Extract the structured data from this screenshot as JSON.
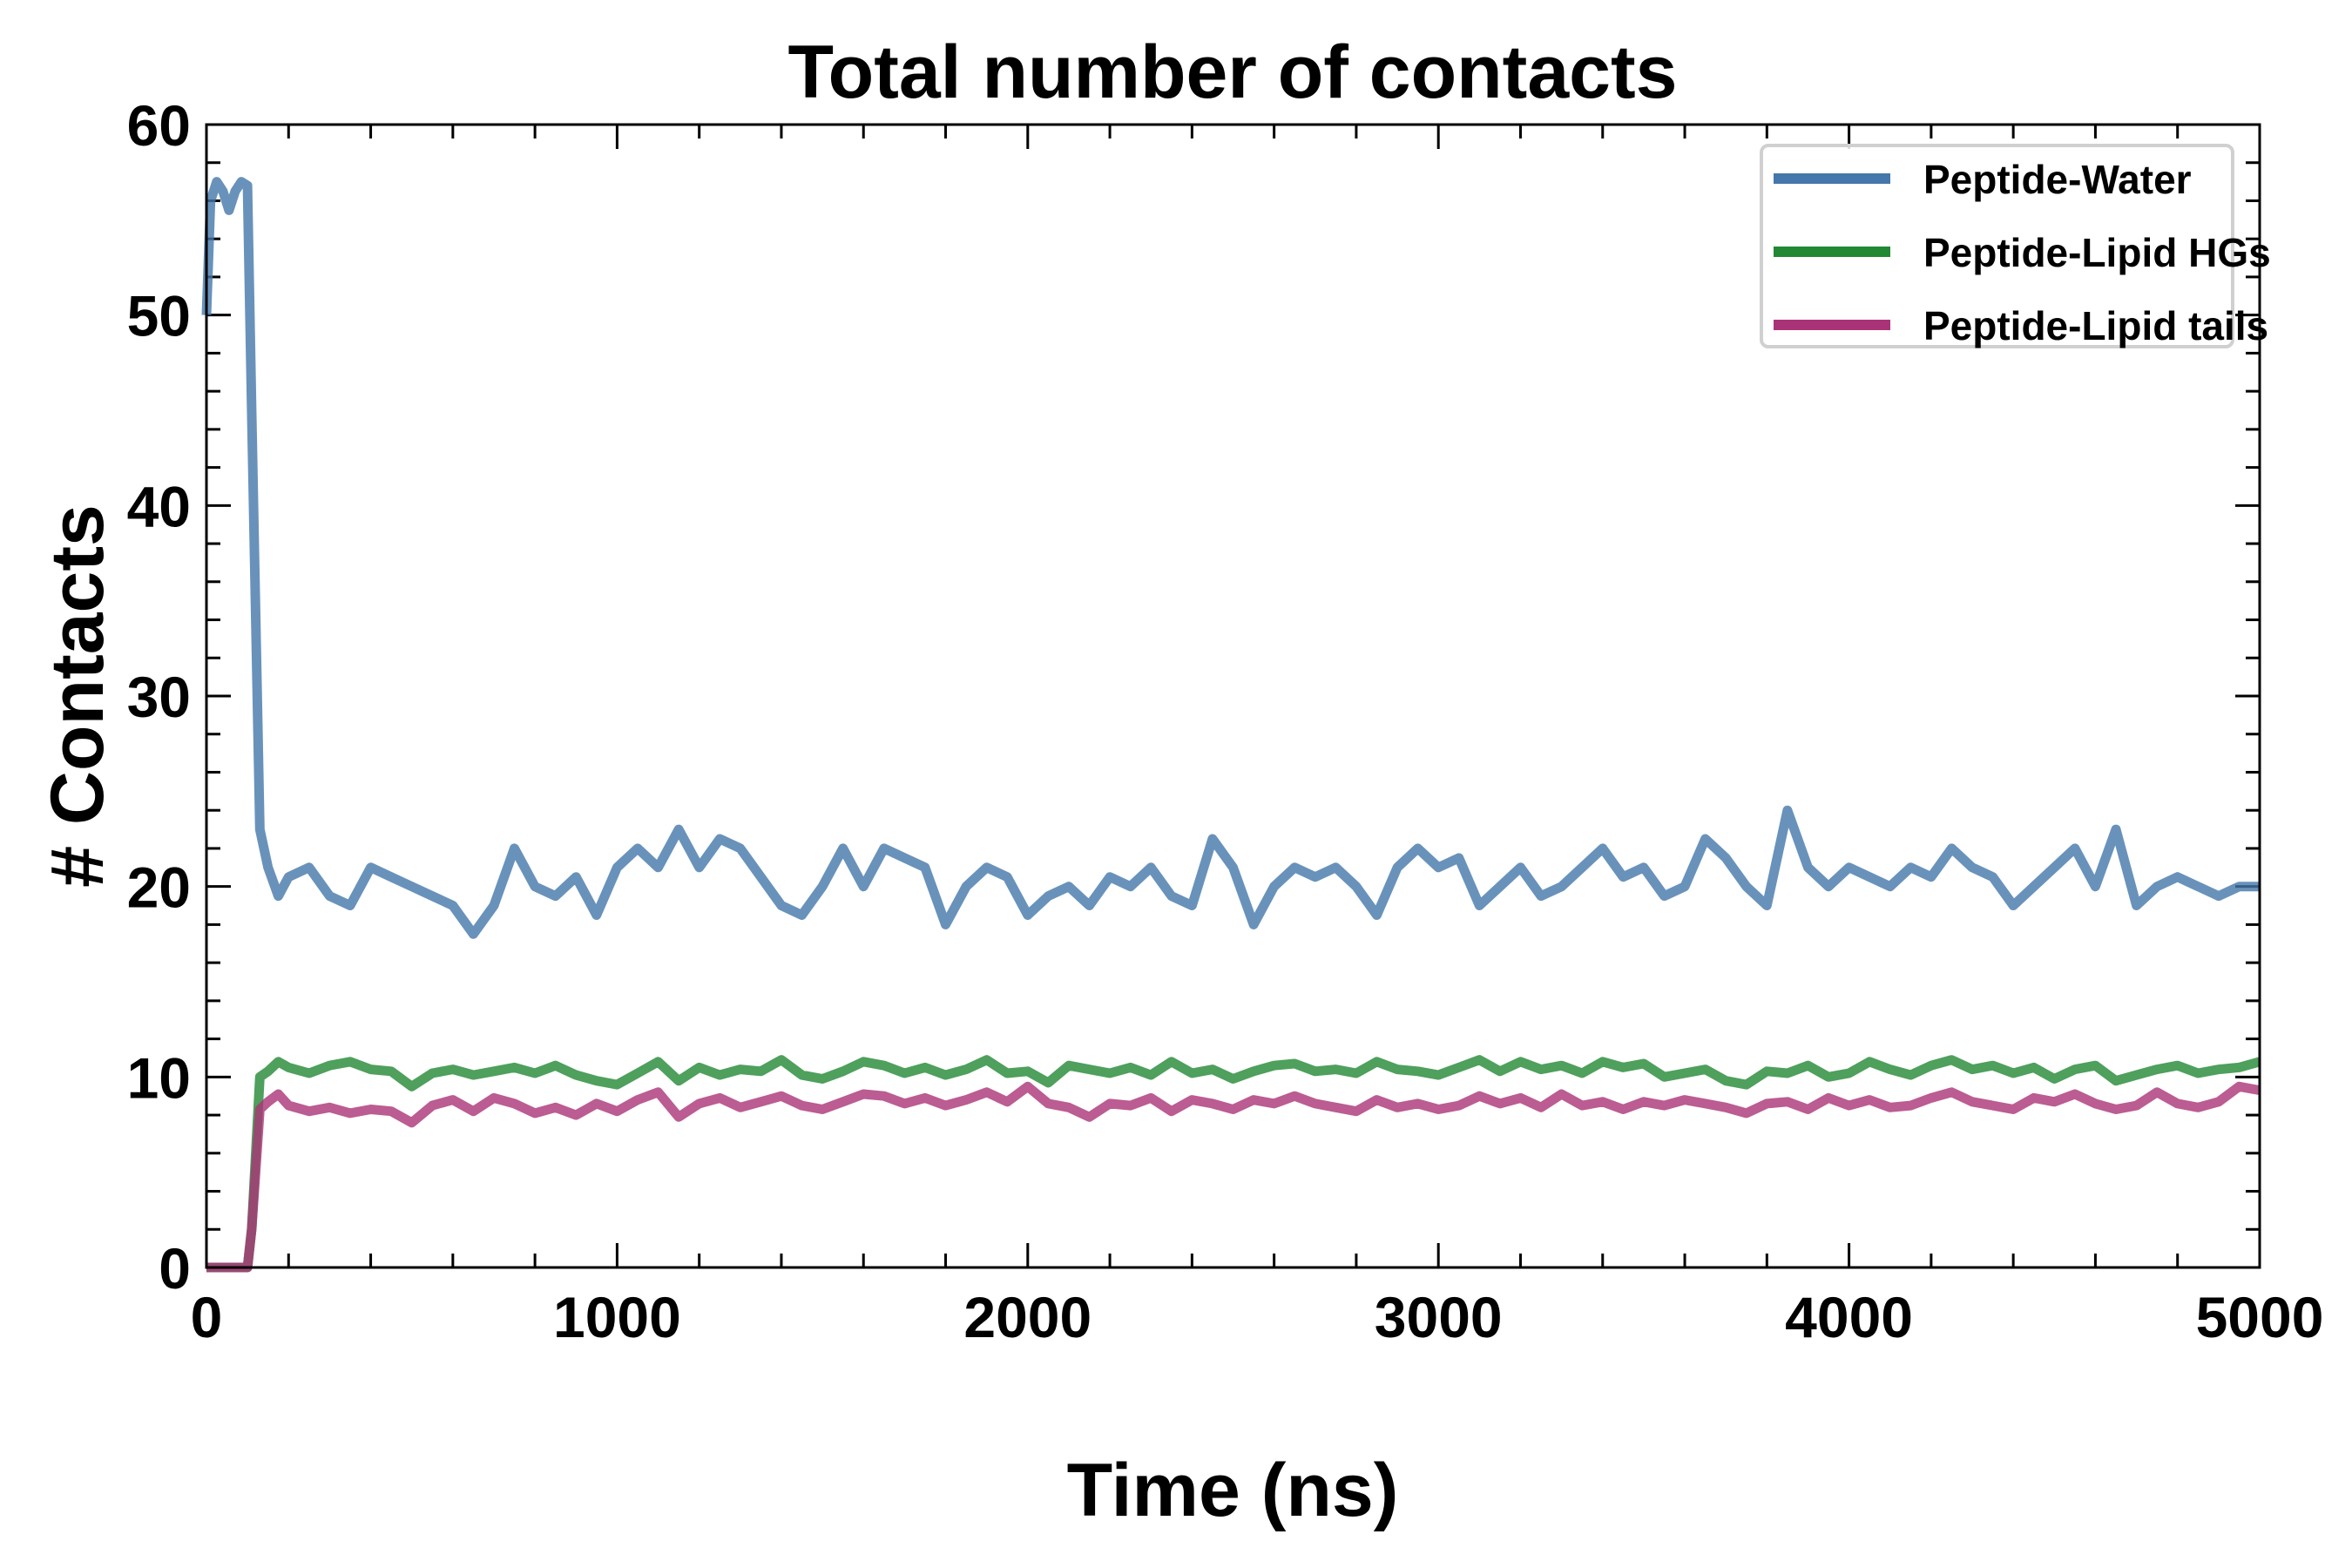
{
  "chart_data": {
    "type": "line",
    "title": "Total number of contacts",
    "xlabel": "Time (ns)",
    "ylabel": "# Contacts",
    "xlim": [
      0,
      5000
    ],
    "ylim": [
      0,
      60
    ],
    "xticks": [
      0,
      1000,
      2000,
      3000,
      4000,
      5000
    ],
    "yticks": [
      0,
      10,
      20,
      30,
      40,
      50,
      60
    ],
    "xticklabels": [
      "0",
      "1000",
      "2000",
      "3000",
      "4000",
      "5000"
    ],
    "yticklabels": [
      "0",
      "10",
      "20",
      "30",
      "40",
      "50",
      "60"
    ],
    "grid": false,
    "legend_position": "top-right",
    "series": [
      {
        "name": "Peptide-Water",
        "color": "#4477aa",
        "x": [
          0,
          10,
          25,
          40,
          55,
          70,
          85,
          100,
          110,
          130,
          150,
          175,
          200,
          250,
          300,
          350,
          400,
          450,
          500,
          550,
          600,
          650,
          700,
          750,
          800,
          850,
          900,
          950,
          1000,
          1050,
          1100,
          1150,
          1200,
          1250,
          1300,
          1350,
          1400,
          1450,
          1500,
          1550,
          1600,
          1650,
          1700,
          1750,
          1800,
          1850,
          1900,
          1950,
          2000,
          2050,
          2100,
          2150,
          2200,
          2250,
          2300,
          2350,
          2400,
          2450,
          2500,
          2550,
          2600,
          2650,
          2700,
          2750,
          2800,
          2850,
          2900,
          2950,
          3000,
          3050,
          3100,
          3150,
          3200,
          3250,
          3300,
          3350,
          3400,
          3450,
          3500,
          3550,
          3600,
          3650,
          3700,
          3750,
          3800,
          3850,
          3900,
          3950,
          4000,
          4050,
          4100,
          4150,
          4200,
          4250,
          4300,
          4350,
          4400,
          4450,
          4500,
          4550,
          4600,
          4650,
          4700,
          4750,
          4800,
          4850,
          4900,
          4950,
          5000
        ],
        "y": [
          50,
          56,
          57,
          56.5,
          55.5,
          56.5,
          57,
          56.8,
          45,
          23,
          21,
          19.5,
          20.5,
          21,
          19.5,
          19,
          21,
          20.5,
          20,
          19.5,
          19,
          17.5,
          19,
          22,
          20,
          19.5,
          20.5,
          18.5,
          21,
          22,
          21,
          23,
          21,
          22.5,
          22,
          20.5,
          19,
          18.5,
          20,
          22,
          20,
          22,
          21.5,
          21,
          18,
          20,
          21,
          20.5,
          18.5,
          19.5,
          20,
          19,
          20.5,
          20,
          21,
          19.5,
          19,
          22.5,
          21,
          18,
          20,
          21,
          20.5,
          21,
          20,
          18.5,
          21,
          22,
          21,
          21.5,
          19,
          20,
          21,
          19.5,
          20,
          21,
          22,
          20.5,
          21,
          19.5,
          20,
          22.5,
          21.5,
          20,
          19,
          24,
          21,
          20,
          21,
          20.5,
          20,
          21,
          20.5,
          22,
          21,
          20.5,
          19,
          20,
          21,
          22,
          20,
          23,
          19,
          20,
          20.5,
          20,
          19.5,
          20,
          20
        ]
      },
      {
        "name": "Peptide-Lipid HGs",
        "color": "#228833",
        "x": [
          0,
          50,
          100,
          110,
          130,
          150,
          175,
          200,
          250,
          300,
          350,
          400,
          450,
          500,
          550,
          600,
          650,
          700,
          750,
          800,
          850,
          900,
          950,
          1000,
          1050,
          1100,
          1150,
          1200,
          1250,
          1300,
          1350,
          1400,
          1450,
          1500,
          1550,
          1600,
          1650,
          1700,
          1750,
          1800,
          1850,
          1900,
          1950,
          2000,
          2050,
          2100,
          2150,
          2200,
          2250,
          2300,
          2350,
          2400,
          2450,
          2500,
          2550,
          2600,
          2650,
          2700,
          2750,
          2800,
          2850,
          2900,
          2950,
          3000,
          3050,
          3100,
          3150,
          3200,
          3250,
          3300,
          3350,
          3400,
          3450,
          3500,
          3550,
          3600,
          3650,
          3700,
          3750,
          3800,
          3850,
          3900,
          3950,
          4000,
          4050,
          4100,
          4150,
          4200,
          4250,
          4300,
          4350,
          4400,
          4450,
          4500,
          4550,
          4600,
          4650,
          4700,
          4750,
          4800,
          4850,
          4900,
          4950,
          5000
        ],
        "y": [
          0,
          0,
          0,
          2,
          10,
          10.3,
          10.8,
          10.5,
          10.2,
          10.6,
          10.8,
          10.4,
          10.3,
          9.5,
          10.2,
          10.4,
          10.1,
          10.3,
          10.5,
          10.2,
          10.6,
          10.1,
          9.8,
          9.6,
          10.2,
          10.8,
          9.8,
          10.5,
          10.1,
          10.4,
          10.3,
          10.9,
          10.1,
          9.9,
          10.3,
          10.8,
          10.6,
          10.2,
          10.5,
          10.1,
          10.4,
          10.9,
          10.2,
          10.3,
          9.7,
          10.6,
          10.4,
          10.2,
          10.5,
          10.1,
          10.8,
          10.2,
          10.4,
          9.9,
          10.3,
          10.6,
          10.7,
          10.3,
          10.4,
          10.2,
          10.8,
          10.4,
          10.3,
          10.1,
          10.5,
          10.9,
          10.3,
          10.8,
          10.4,
          10.6,
          10.2,
          10.8,
          10.5,
          10.7,
          10,
          10.2,
          10.4,
          9.8,
          9.6,
          10.3,
          10.2,
          10.6,
          10,
          10.2,
          10.8,
          10.4,
          10.1,
          10.6,
          10.9,
          10.4,
          10.6,
          10.2,
          10.5,
          9.9,
          10.4,
          10.6,
          9.8,
          10.1,
          10.4,
          10.6,
          10.2,
          10.4,
          10.5,
          10.8
        ]
      },
      {
        "name": "Peptide-Lipid tails",
        "color": "#aa3377",
        "x": [
          0,
          50,
          100,
          110,
          130,
          150,
          175,
          200,
          250,
          300,
          350,
          400,
          450,
          500,
          550,
          600,
          650,
          700,
          750,
          800,
          850,
          900,
          950,
          1000,
          1050,
          1100,
          1150,
          1200,
          1250,
          1300,
          1350,
          1400,
          1450,
          1500,
          1550,
          1600,
          1650,
          1700,
          1750,
          1800,
          1850,
          1900,
          1950,
          2000,
          2050,
          2100,
          2150,
          2200,
          2250,
          2300,
          2350,
          2400,
          2450,
          2500,
          2550,
          2600,
          2650,
          2700,
          2750,
          2800,
          2850,
          2900,
          2950,
          3000,
          3050,
          3100,
          3150,
          3200,
          3250,
          3300,
          3350,
          3400,
          3450,
          3500,
          3550,
          3600,
          3650,
          3700,
          3750,
          3800,
          3850,
          3900,
          3950,
          4000,
          4050,
          4100,
          4150,
          4200,
          4250,
          4300,
          4350,
          4400,
          4450,
          4500,
          4550,
          4600,
          4650,
          4700,
          4750,
          4800,
          4850,
          4900,
          4950,
          5000
        ],
        "y": [
          0,
          0,
          0,
          2,
          8.3,
          8.7,
          9.1,
          8.5,
          8.2,
          8.4,
          8.1,
          8.3,
          8.2,
          7.6,
          8.5,
          8.8,
          8.2,
          8.9,
          8.6,
          8.1,
          8.4,
          8.0,
          8.6,
          8.2,
          8.8,
          9.2,
          7.9,
          8.6,
          8.9,
          8.4,
          8.7,
          9,
          8.5,
          8.3,
          8.7,
          9.1,
          9.0,
          8.6,
          8.9,
          8.5,
          8.8,
          9.2,
          8.7,
          9.5,
          8.6,
          8.4,
          7.9,
          8.6,
          8.5,
          8.9,
          8.2,
          8.8,
          8.6,
          8.3,
          8.8,
          8.6,
          9.0,
          8.6,
          8.4,
          8.2,
          8.8,
          8.4,
          8.6,
          8.3,
          8.5,
          9.0,
          8.6,
          8.9,
          8.4,
          9.1,
          8.5,
          8.7,
          8.3,
          8.7,
          8.5,
          8.8,
          8.6,
          8.4,
          8.1,
          8.6,
          8.7,
          8.3,
          8.9,
          8.5,
          8.8,
          8.4,
          8.5,
          8.9,
          9.2,
          8.7,
          8.5,
          8.3,
          8.9,
          8.7,
          9.1,
          8.6,
          8.3,
          8.5,
          9.2,
          8.6,
          8.4,
          8.7,
          9.5,
          9.3
        ]
      }
    ]
  }
}
